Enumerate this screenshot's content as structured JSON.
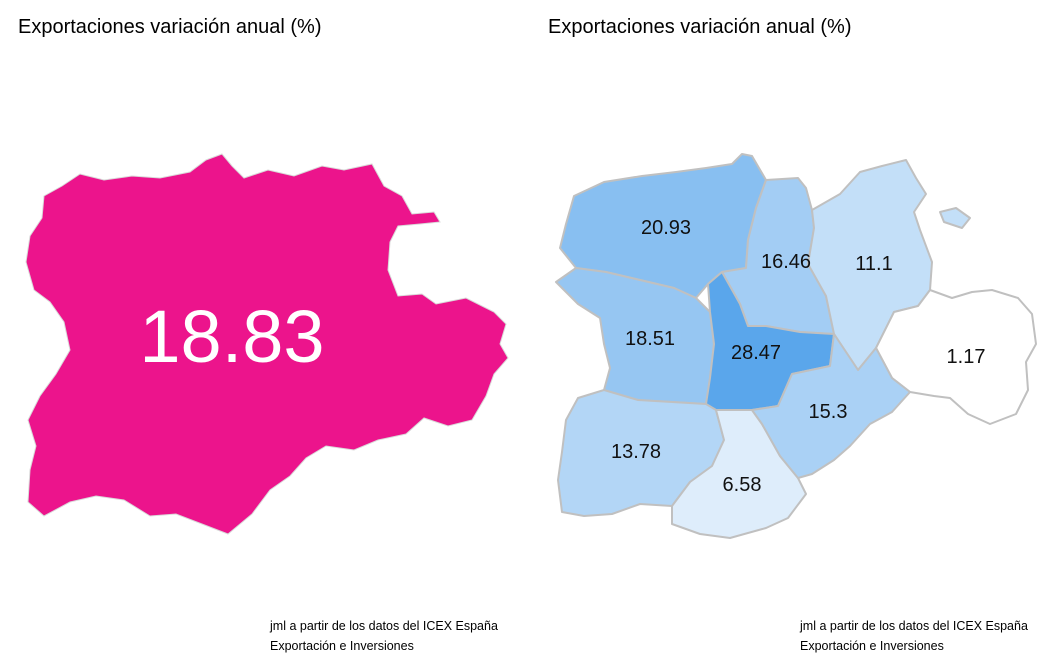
{
  "left_map": {
    "title": "Exportaciones variación anual (%)",
    "total_value": "18.83",
    "fill_color": "#ec148c",
    "caption_line1": "jml a partir de los datos del ICEX España",
    "caption_line2": "Exportación e Inversiones"
  },
  "right_map": {
    "title": "Exportaciones variación anual (%)",
    "regions": [
      {
        "id": "region-northwest",
        "label": "20.93",
        "value": 20.93
      },
      {
        "id": "region-north-center",
        "label": "16.46",
        "value": 16.46
      },
      {
        "id": "region-northeast",
        "label": "11.1",
        "value": 11.1
      },
      {
        "id": "region-west",
        "label": "18.51",
        "value": 18.51
      },
      {
        "id": "region-center",
        "label": "28.47",
        "value": 28.47
      },
      {
        "id": "region-east",
        "label": "1.17",
        "value": 1.17
      },
      {
        "id": "region-southwest",
        "label": "13.78",
        "value": 13.78
      },
      {
        "id": "region-south",
        "label": "6.58",
        "value": 6.58
      },
      {
        "id": "region-southeast",
        "label": "15.3",
        "value": 15.3
      }
    ],
    "color_scale": {
      "low": "#ffffff",
      "high": "#5aa6eb"
    },
    "caption_line1": "jml a partir de los datos del ICEX España",
    "caption_line2": "Exportación e Inversiones"
  }
}
